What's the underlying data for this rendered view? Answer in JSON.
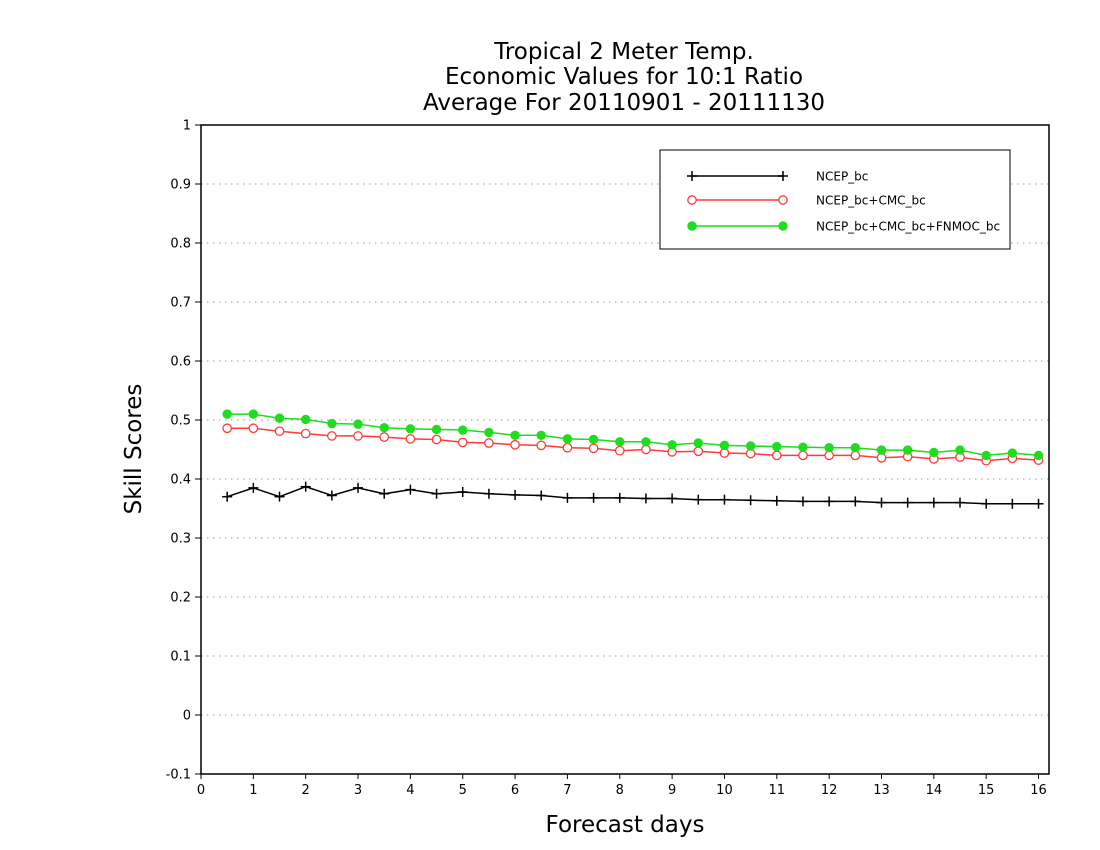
{
  "chart_data": {
    "type": "line",
    "title": [
      "Tropical 2 Meter Temp.",
      "Economic Values for 10:1 Ratio",
      "Average For 20110901 - 20111130"
    ],
    "xlabel": "Forecast days",
    "ylabel": "Skill Scores",
    "xlim": [
      0,
      16.2
    ],
    "ylim": [
      -0.1,
      1
    ],
    "xticks": [
      0,
      1,
      2,
      3,
      4,
      5,
      6,
      7,
      8,
      9,
      10,
      11,
      12,
      13,
      14,
      15,
      16
    ],
    "xtick_labels": [
      "0",
      "1",
      "2",
      "3",
      "4",
      "5",
      "6",
      "7",
      "8",
      "9",
      "10",
      "11",
      "12",
      "13",
      "14",
      "15",
      "16"
    ],
    "yticks": [
      -0.1,
      0,
      0.1,
      0.2,
      0.3,
      0.4,
      0.5,
      0.6,
      0.7,
      0.8,
      0.9,
      1
    ],
    "ytick_labels": [
      "-0.1",
      "0",
      "0.1",
      "0.2",
      "0.3",
      "0.4",
      "0.5",
      "0.6",
      "0.7",
      "0.8",
      "0.9",
      "1"
    ],
    "grid": "horizontal-dotted",
    "legend_position": "top-right",
    "x": [
      0.5,
      1,
      1.5,
      2,
      2.5,
      3,
      3.5,
      4,
      4.5,
      5,
      5.5,
      6,
      6.5,
      7,
      7.5,
      8,
      8.5,
      9,
      9.5,
      10,
      10.5,
      11,
      11.5,
      12,
      12.5,
      13,
      13.5,
      14,
      14.5,
      15,
      15.5,
      16
    ],
    "series": [
      {
        "name": "NCEP_bc",
        "color": "#000000",
        "marker": "plus",
        "values": [
          0.37,
          0.385,
          0.37,
          0.387,
          0.372,
          0.385,
          0.375,
          0.382,
          0.375,
          0.378,
          0.375,
          0.373,
          0.372,
          0.368,
          0.368,
          0.368,
          0.367,
          0.367,
          0.365,
          0.365,
          0.364,
          0.363,
          0.362,
          0.362,
          0.362,
          0.36,
          0.36,
          0.36,
          0.36,
          0.358,
          0.358,
          0.358
        ]
      },
      {
        "name": "NCEP_bc+CMC_bc",
        "color": "#ff3b3b",
        "marker": "open-circle",
        "values": [
          0.486,
          0.486,
          0.481,
          0.477,
          0.473,
          0.473,
          0.471,
          0.468,
          0.467,
          0.462,
          0.461,
          0.458,
          0.457,
          0.453,
          0.452,
          0.448,
          0.45,
          0.446,
          0.447,
          0.444,
          0.443,
          0.44,
          0.44,
          0.44,
          0.44,
          0.436,
          0.438,
          0.434,
          0.437,
          0.431,
          0.435,
          0.432
        ]
      },
      {
        "name": "NCEP_bc+CMC_bc+FNMOC_bc",
        "color": "#1fdc1f",
        "marker": "filled-circle",
        "values": [
          0.51,
          0.51,
          0.503,
          0.501,
          0.494,
          0.493,
          0.487,
          0.485,
          0.484,
          0.483,
          0.479,
          0.474,
          0.474,
          0.468,
          0.467,
          0.463,
          0.463,
          0.458,
          0.461,
          0.457,
          0.456,
          0.455,
          0.454,
          0.453,
          0.453,
          0.449,
          0.449,
          0.445,
          0.449,
          0.44,
          0.444,
          0.44
        ]
      }
    ]
  }
}
